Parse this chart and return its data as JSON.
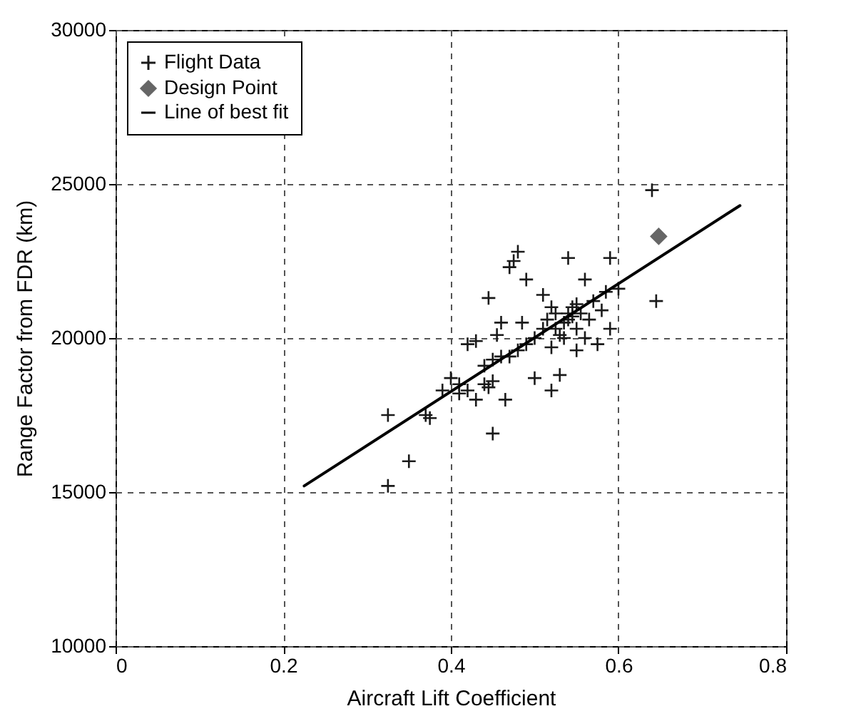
{
  "chart_data": {
    "type": "scatter",
    "xlabel": "Aircraft Lift Coefficient",
    "ylabel": "Range Factor from FDR  (km)",
    "xlim": [
      0,
      0.8
    ],
    "xticks": [
      0,
      0.2,
      0.4,
      0.6,
      0.8
    ],
    "ylim": [
      10000,
      30000
    ],
    "yticks": [
      10000,
      15000,
      20000,
      25000,
      30000
    ],
    "grid": true,
    "legend": "top left",
    "series": [
      {
        "name": "Flight Data",
        "marker": "cross",
        "color": "#1a1a1a",
        "x": [
          0.325,
          0.325,
          0.35,
          0.37,
          0.375,
          0.39,
          0.4,
          0.41,
          0.41,
          0.42,
          0.42,
          0.43,
          0.43,
          0.44,
          0.44,
          0.445,
          0.445,
          0.45,
          0.45,
          0.45,
          0.455,
          0.46,
          0.46,
          0.465,
          0.47,
          0.47,
          0.475,
          0.48,
          0.48,
          0.485,
          0.49,
          0.49,
          0.5,
          0.5,
          0.51,
          0.51,
          0.515,
          0.52,
          0.52,
          0.52,
          0.525,
          0.525,
          0.53,
          0.53,
          0.535,
          0.535,
          0.54,
          0.54,
          0.54,
          0.545,
          0.545,
          0.55,
          0.55,
          0.55,
          0.555,
          0.56,
          0.56,
          0.565,
          0.57,
          0.575,
          0.58,
          0.585,
          0.59,
          0.59,
          0.6,
          0.64,
          0.645
        ],
        "values": [
          17500,
          15200,
          16000,
          17500,
          17400,
          18300,
          18700,
          18500,
          18200,
          19800,
          18300,
          19900,
          18000,
          18500,
          19100,
          21300,
          18400,
          16900,
          19300,
          18600,
          20100,
          19400,
          20500,
          18000,
          22300,
          19400,
          22500,
          22800,
          19600,
          20500,
          21900,
          19800,
          18700,
          20000,
          20300,
          21400,
          20600,
          18300,
          21000,
          19700,
          20800,
          20300,
          20100,
          18800,
          20500,
          20000,
          22600,
          20800,
          20600,
          21000,
          20700,
          20300,
          21100,
          19600,
          20800,
          21900,
          20000,
          20600,
          21200,
          19800,
          20900,
          21500,
          22600,
          20300,
          21600,
          24800,
          21200
        ]
      },
      {
        "name": "Design Point",
        "marker": "diamond",
        "color": "#666666",
        "x": [
          0.648
        ],
        "values": [
          23300
        ]
      },
      {
        "name": "Line of best fit",
        "type": "line",
        "marker": "none",
        "line_style": "solid",
        "color": "#000000",
        "x": [
          0.225,
          0.745
        ],
        "values": [
          15200,
          24300
        ]
      }
    ]
  }
}
